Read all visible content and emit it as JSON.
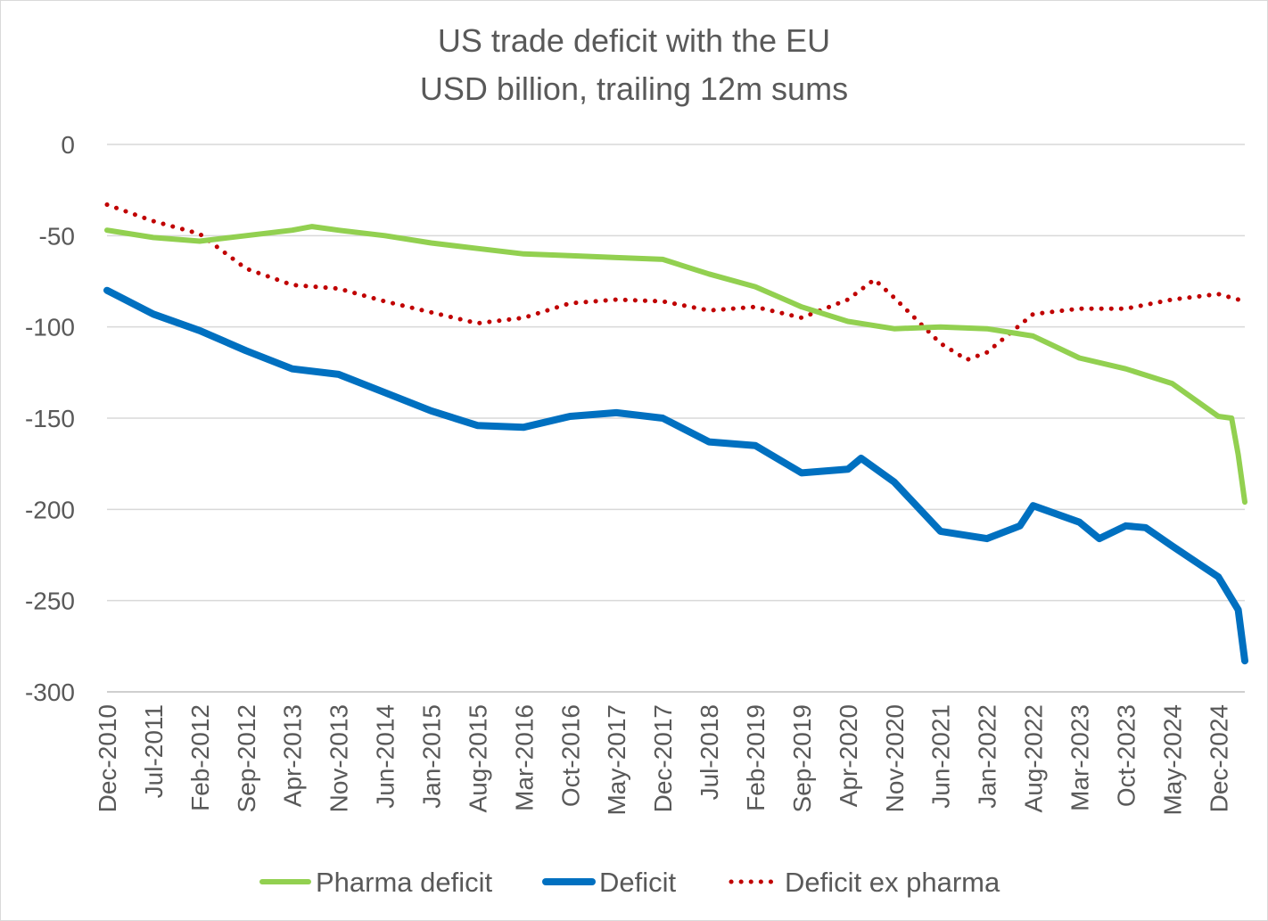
{
  "chart_data": {
    "type": "line",
    "title": "US trade deficit with the EU",
    "subtitle": "USD billion, trailing 12m sums",
    "ylim": [
      -300,
      0
    ],
    "yticks": [
      0,
      -50,
      -100,
      -150,
      -200,
      -250,
      -300
    ],
    "x_start": "Dec-2010",
    "x_end": "Apr-2025",
    "x_ticks": [
      "Dec-2010",
      "Jul-2011",
      "Feb-2012",
      "Sep-2012",
      "Apr-2013",
      "Nov-2013",
      "Jun-2014",
      "Jan-2015",
      "Aug-2015",
      "Mar-2016",
      "Oct-2016",
      "May-2017",
      "Dec-2017",
      "Jul-2018",
      "Feb-2019",
      "Sep-2019",
      "Apr-2020",
      "Nov-2020",
      "Jun-2021",
      "Jan-2022",
      "Aug-2022",
      "Mar-2023",
      "Oct-2023",
      "May-2024",
      "Dec-2024"
    ],
    "legend_position": "bottom",
    "grid": true,
    "series": [
      {
        "name": "Pharma deficit",
        "color": "#92d050",
        "style": "solid",
        "points": [
          [
            "Dec-2010",
            -47
          ],
          [
            "Jul-2011",
            -51
          ],
          [
            "Feb-2012",
            -53
          ],
          [
            "Sep-2012",
            -50
          ],
          [
            "Apr-2013",
            -47
          ],
          [
            "Jul-2013",
            -45
          ],
          [
            "Nov-2013",
            -47
          ],
          [
            "Jun-2014",
            -50
          ],
          [
            "Jan-2015",
            -54
          ],
          [
            "Aug-2015",
            -57
          ],
          [
            "Mar-2016",
            -60
          ],
          [
            "Oct-2016",
            -61
          ],
          [
            "May-2017",
            -62
          ],
          [
            "Dec-2017",
            -63
          ],
          [
            "Jul-2018",
            -71
          ],
          [
            "Feb-2019",
            -78
          ],
          [
            "Sep-2019",
            -89
          ],
          [
            "Apr-2020",
            -97
          ],
          [
            "Nov-2020",
            -101
          ],
          [
            "Jun-2021",
            -100
          ],
          [
            "Jan-2022",
            -101
          ],
          [
            "Aug-2022",
            -105
          ],
          [
            "Mar-2023",
            -117
          ],
          [
            "Oct-2023",
            -123
          ],
          [
            "May-2024",
            -131
          ],
          [
            "Dec-2024",
            -149
          ],
          [
            "Feb-2025",
            -150
          ],
          [
            "Mar-2025",
            -170
          ],
          [
            "Apr-2025",
            -196
          ]
        ]
      },
      {
        "name": "Deficit",
        "color": "#0070c0",
        "style": "solid",
        "points": [
          [
            "Dec-2010",
            -80
          ],
          [
            "Jul-2011",
            -93
          ],
          [
            "Feb-2012",
            -102
          ],
          [
            "Sep-2012",
            -113
          ],
          [
            "Apr-2013",
            -123
          ],
          [
            "Nov-2013",
            -126
          ],
          [
            "Jun-2014",
            -136
          ],
          [
            "Jan-2015",
            -146
          ],
          [
            "Aug-2015",
            -154
          ],
          [
            "Mar-2016",
            -155
          ],
          [
            "Oct-2016",
            -149
          ],
          [
            "May-2017",
            -147
          ],
          [
            "Dec-2017",
            -150
          ],
          [
            "Jul-2018",
            -163
          ],
          [
            "Feb-2019",
            -165
          ],
          [
            "Sep-2019",
            -180
          ],
          [
            "Apr-2020",
            -178
          ],
          [
            "Jun-2020",
            -172
          ],
          [
            "Nov-2020",
            -185
          ],
          [
            "Jun-2021",
            -212
          ],
          [
            "Jan-2022",
            -216
          ],
          [
            "Jun-2022",
            -209
          ],
          [
            "Aug-2022",
            -198
          ],
          [
            "Mar-2023",
            -207
          ],
          [
            "Jun-2023",
            -216
          ],
          [
            "Oct-2023",
            -209
          ],
          [
            "Jan-2024",
            -210
          ],
          [
            "May-2024",
            -220
          ],
          [
            "Dec-2024",
            -237
          ],
          [
            "Mar-2025",
            -255
          ],
          [
            "Apr-2025",
            -283
          ]
        ]
      },
      {
        "name": "Deficit ex pharma",
        "color": "#c00000",
        "style": "dotted",
        "points": [
          [
            "Dec-2010",
            -33
          ],
          [
            "Jul-2011",
            -42
          ],
          [
            "Feb-2012",
            -49
          ],
          [
            "Sep-2012",
            -68
          ],
          [
            "Apr-2013",
            -77
          ],
          [
            "Nov-2013",
            -79
          ],
          [
            "Jun-2014",
            -86
          ],
          [
            "Jan-2015",
            -92
          ],
          [
            "Aug-2015",
            -98
          ],
          [
            "Mar-2016",
            -95
          ],
          [
            "Oct-2016",
            -87
          ],
          [
            "May-2017",
            -85
          ],
          [
            "Dec-2017",
            -86
          ],
          [
            "Jul-2018",
            -91
          ],
          [
            "Feb-2019",
            -89
          ],
          [
            "Sep-2019",
            -95
          ],
          [
            "Apr-2020",
            -85
          ],
          [
            "Aug-2020",
            -74
          ],
          [
            "Nov-2020",
            -84
          ],
          [
            "Jun-2021",
            -109
          ],
          [
            "Oct-2021",
            -118
          ],
          [
            "Jan-2022",
            -114
          ],
          [
            "Aug-2022",
            -93
          ],
          [
            "Mar-2023",
            -90
          ],
          [
            "Oct-2023",
            -90
          ],
          [
            "May-2024",
            -85
          ],
          [
            "Dec-2024",
            -82
          ],
          [
            "Apr-2025",
            -86
          ]
        ]
      }
    ]
  }
}
